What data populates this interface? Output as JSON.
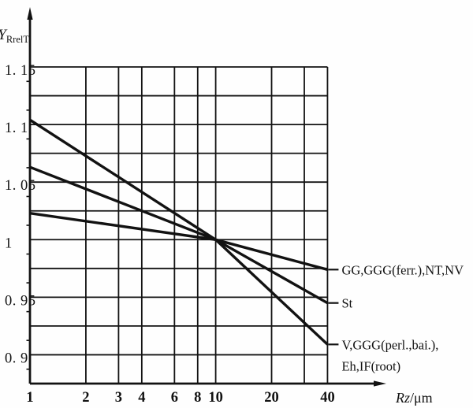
{
  "figure": {
    "description": "Relative surface (roughness) factor chart on semi-log axes, three material curves converging at Rz = 10, Y = 1.0",
    "background_color": "#fefefe",
    "ink_color": "#121212"
  },
  "chart_data": {
    "type": "line",
    "title": "",
    "x_axis": {
      "label_italic": "Rz",
      "label_rest": "/μm",
      "scale": "log",
      "range": [
        1,
        40
      ],
      "gridlines": [
        1,
        2,
        3,
        4,
        6,
        8,
        10,
        20,
        30,
        40
      ],
      "tick_labels": [
        {
          "v": 1,
          "t": "1"
        },
        {
          "v": 2,
          "t": "2"
        },
        {
          "v": 3,
          "t": "3"
        },
        {
          "v": 4,
          "t": "4"
        },
        {
          "v": 6,
          "t": "6"
        },
        {
          "v": 8,
          "t": "8"
        },
        {
          "v": 10,
          "t": "10"
        },
        {
          "v": 20,
          "t": "20"
        },
        {
          "v": 40,
          "t": "40"
        }
      ]
    },
    "y_axis": {
      "label_main": "Y",
      "label_sub": "RrelT",
      "scale": "linear",
      "range": [
        0.875,
        1.15
      ],
      "grid_step": 0.025,
      "minor_tick_step": 0.025,
      "minor_tick_start": 0.8875,
      "tick_labels": [
        {
          "v": 1.15,
          "t": "1. 15"
        },
        {
          "v": 1.1,
          "t": "1. 1"
        },
        {
          "v": 1.05,
          "t": "1. 05"
        },
        {
          "v": 1.0,
          "t": "1"
        },
        {
          "v": 0.95,
          "t": "0. 95"
        },
        {
          "v": 0.9,
          "t": "0. 9"
        }
      ]
    },
    "grid": true,
    "legend_position": "right-of-curve-ends",
    "series": [
      {
        "name": "GG,GGG(ferr.),NT,NV",
        "label_lines": [
          "GG,GGG(ferr.),NT,NV"
        ],
        "points": [
          [
            1,
            1.023
          ],
          [
            10,
            1.0
          ],
          [
            40,
            0.974
          ]
        ]
      },
      {
        "name": "St",
        "label_lines": [
          "St"
        ],
        "points": [
          [
            1,
            1.063
          ],
          [
            10,
            1.0
          ],
          [
            40,
            0.945
          ]
        ]
      },
      {
        "name": "V,GGG(perl.,bai.),Eh,IF(root)",
        "label_lines": [
          "V,GGG(perl.,bai.),",
          "Eh,IF(root)"
        ],
        "points": [
          [
            1,
            1.104
          ],
          [
            10,
            1.0
          ],
          [
            40,
            0.909
          ]
        ]
      }
    ],
    "annotations": {
      "common_point": [
        10,
        1.0
      ]
    }
  }
}
